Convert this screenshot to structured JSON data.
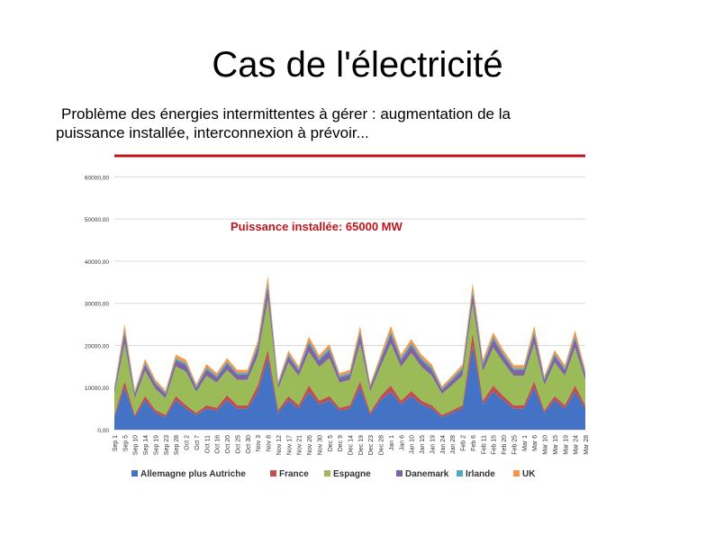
{
  "slide": {
    "title": "Cas de l'électricité",
    "text_line1": "Problème des énergies intermittentes à gérer : augmentation de la",
    "text_line2": "puissance installée, interconnexion à prévoir..."
  },
  "chart_data": {
    "type": "area",
    "stacked": true,
    "annotation": "Puissance installée: 65000 MW",
    "reference_line": {
      "value": 65000,
      "color": "#c0141c"
    },
    "ylim": [
      0,
      65000
    ],
    "yticks": [
      0,
      10000,
      20000,
      30000,
      40000,
      50000,
      60000
    ],
    "ytick_labels": [
      "0,00",
      "10000,00",
      "20000,00",
      "30000,00",
      "40000,00",
      "50000,00",
      "60000,00"
    ],
    "grid": true,
    "legend_position": "bottom",
    "categories": [
      "Sep 1",
      "Sep 5",
      "Sep 10",
      "Sep 14",
      "Sep 19",
      "Sep 23",
      "Sep 28",
      "Oct 2",
      "Oct 7",
      "Oct 11",
      "Oct 16",
      "Oct 20",
      "Oct 25",
      "Oct 30",
      "Nov 3",
      "Nov 8",
      "Nov 12",
      "Nov 17",
      "Nov 21",
      "Nov 26",
      "Nov 30",
      "Dec 5",
      "Dec 9",
      "Dec 14",
      "Dec 19",
      "Dec 23",
      "Dec 28",
      "Jan 1",
      "Jan 6",
      "Jan 10",
      "Jan 15",
      "Jan 19",
      "Jan 24",
      "Jan 28",
      "Feb 2",
      "Feb 6",
      "Feb 11",
      "Feb 15",
      "Feb 20",
      "Feb 25",
      "Mar 1",
      "Mar 6",
      "Mar 10",
      "Mar 15",
      "Mar 19",
      "Mar 24",
      "Mar 28"
    ],
    "series": [
      {
        "name": "Allemagne plus Autriche",
        "color": "#4472c4",
        "values": [
          3000,
          10000,
          3000,
          7000,
          4000,
          3000,
          7000,
          5000,
          3500,
          5000,
          4500,
          7000,
          5000,
          5000,
          9000,
          17000,
          4000,
          7000,
          5000,
          9000,
          6000,
          7000,
          4500,
          5000,
          10000,
          3500,
          7000,
          9000,
          6000,
          8000,
          6000,
          5000,
          3000,
          4000,
          5000,
          20000,
          6000,
          9000,
          7000,
          5000,
          5000,
          10000,
          4000,
          7000,
          5000,
          9000,
          5000
        ]
      },
      {
        "name": "France",
        "color": "#c0504d",
        "values": [
          500,
          1500,
          500,
          1000,
          700,
          500,
          1000,
          800,
          500,
          800,
          700,
          1200,
          800,
          800,
          1500,
          2000,
          700,
          1000,
          800,
          1500,
          900,
          1000,
          700,
          800,
          1500,
          600,
          1000,
          1500,
          900,
          1200,
          900,
          800,
          500,
          600,
          800,
          3000,
          900,
          1500,
          1000,
          800,
          800,
          1500,
          600,
          1000,
          800,
          1500,
          800
        ]
      },
      {
        "name": "Espagne",
        "color": "#9bbb59",
        "values": [
          5000,
          9000,
          4000,
          6000,
          5000,
          4000,
          7000,
          8000,
          5000,
          7000,
          6000,
          6000,
          6000,
          6000,
          7000,
          12000,
          5000,
          8000,
          7000,
          8000,
          8000,
          9000,
          6000,
          6000,
          9000,
          5000,
          7000,
          10000,
          8000,
          9000,
          8000,
          7000,
          5000,
          6000,
          7000,
          7000,
          7000,
          9000,
          8000,
          7000,
          7000,
          9000,
          6000,
          8000,
          7000,
          9000,
          6000
        ]
      },
      {
        "name": "Danemark",
        "color": "#8064a2",
        "values": [
          1000,
          2500,
          1000,
          1500,
          1200,
          1000,
          1500,
          1500,
          1000,
          1500,
          1200,
          1500,
          1300,
          1300,
          2000,
          3000,
          1000,
          1500,
          1200,
          2000,
          1500,
          1800,
          1200,
          1300,
          2200,
          1000,
          1500,
          2200,
          1600,
          1800,
          1600,
          1500,
          1000,
          1200,
          1500,
          2500,
          1500,
          2000,
          1600,
          1400,
          1400,
          2200,
          1200,
          1600,
          1400,
          2200,
          1300
        ]
      },
      {
        "name": "Irlande",
        "color": "#4bacc6",
        "values": [
          300,
          800,
          300,
          500,
          400,
          300,
          500,
          500,
          300,
          500,
          400,
          500,
          400,
          400,
          600,
          1000,
          300,
          500,
          400,
          600,
          500,
          600,
          400,
          400,
          700,
          300,
          500,
          700,
          500,
          600,
          500,
          500,
          300,
          400,
          500,
          800,
          500,
          600,
          500,
          400,
          400,
          700,
          400,
          500,
          400,
          700,
          400
        ]
      },
      {
        "name": "UK",
        "color": "#f79646",
        "values": [
          500,
          1200,
          500,
          800,
          600,
          500,
          800,
          800,
          500,
          800,
          600,
          800,
          700,
          700,
          1000,
          1500,
          500,
          800,
          600,
          1000,
          800,
          900,
          600,
          700,
          1200,
          500,
          800,
          1200,
          800,
          900,
          800,
          700,
          500,
          600,
          700,
          1500,
          800,
          1000,
          800,
          700,
          700,
          1200,
          600,
          800,
          700,
          1200,
          700
        ]
      }
    ]
  }
}
